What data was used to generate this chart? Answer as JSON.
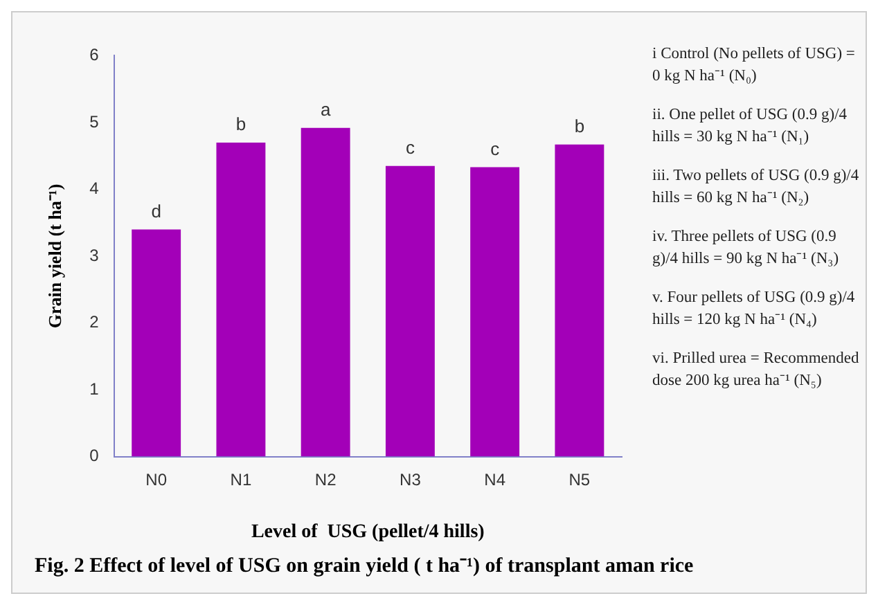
{
  "chart_data": {
    "type": "bar",
    "title": "Fig. 2 Effect of level of USG on grain yield ( t ha⁻¹) of transplant aman rice",
    "xlabel": "Level of  USG (pellet/4 hills)",
    "ylabel": "Grain yield (t ha⁻¹)",
    "categories": [
      "N0",
      "N1",
      "N2",
      "N3",
      "N4",
      "N5"
    ],
    "values": [
      3.4,
      4.7,
      4.92,
      4.35,
      4.33,
      4.67
    ],
    "value_labels": [
      "d",
      "b",
      "a",
      "c",
      "c",
      "b"
    ],
    "color": "#a300b8",
    "ylim": [
      0,
      6
    ],
    "yticks": [
      0,
      1,
      2,
      3,
      4,
      5,
      6
    ],
    "grid": false,
    "annotations": [
      "i   Control (No pellets of USG) = 0 kg N ha⁻¹ (N₀)",
      "ii. One pellet of USG (0.9 g)/4 hills = 30 kg N ha⁻¹ (N₁)",
      "iii. Two pellets of USG (0.9 g)/4 hills = 60 kg N ha⁻¹ (N₂)",
      "iv. Three pellets of USG (0.9 g)/4 hills = 90 kg N ha⁻¹ (N₃)",
      "v. Four pellets of USG (0.9 g)/4 hills = 120 kg N ha⁻¹ (N₄)",
      "vi. Prilled urea = Recommended dose 200 kg urea ha⁻¹ (N₅)"
    ]
  }
}
